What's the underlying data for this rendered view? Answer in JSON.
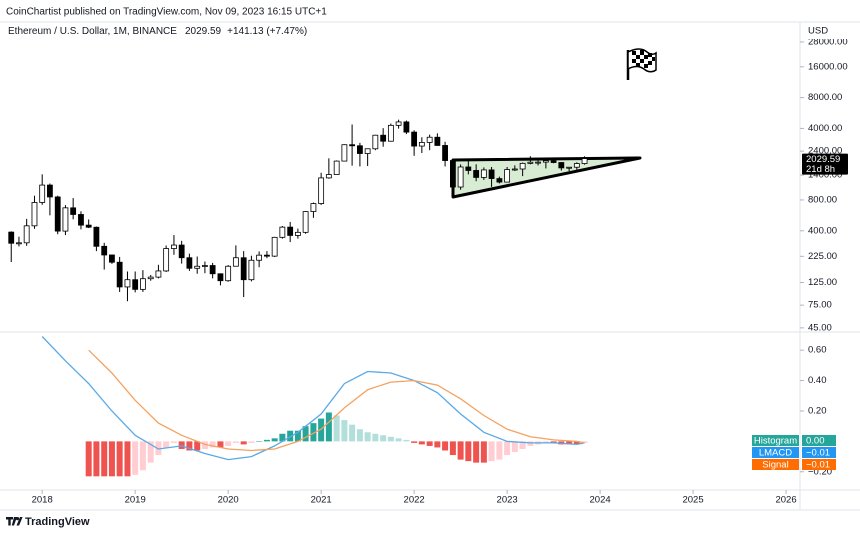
{
  "header": {
    "publisher": "CoinChartist published on TradingView.com, Nov 09, 2023 16:15 UTC+1",
    "symbol": "Ethereum / U.S. Dollar, 1M, BINANCE",
    "change": "+141.13 (+7.47%)",
    "currency": "USD",
    "countdown": "21d 8h"
  },
  "footer": {
    "brand": "TradingView"
  },
  "chart_data": [
    {
      "type": "candlestick",
      "log": true,
      "grid": false,
      "up_color": "#ffffff",
      "down_color": "#000000",
      "outline_color": "#000000",
      "xlim": [
        2017.6,
        2026.15
      ],
      "xticks": [
        2018,
        2019,
        2020,
        2021,
        2022,
        2023,
        2024,
        2025,
        2026
      ],
      "ylim": [
        41,
        32000
      ],
      "yticks": [
        {
          "value": 28000,
          "label": "28000.00"
        },
        {
          "value": 16000,
          "label": "16000.00"
        },
        {
          "value": 8000,
          "label": "8000.00"
        },
        {
          "value": 4000,
          "label": "4000.00"
        },
        {
          "value": 2400,
          "label": "2400.00"
        },
        {
          "value": 1400,
          "label": "1400.00"
        },
        {
          "value": 800,
          "label": "800.00"
        },
        {
          "value": 400,
          "label": "400.00"
        },
        {
          "value": 225,
          "label": "225.00"
        },
        {
          "value": 125,
          "label": "125.00"
        },
        {
          "value": 75,
          "label": "75.00"
        },
        {
          "value": 45,
          "label": "45.00"
        }
      ],
      "x": [
        2017.667,
        2017.75,
        2017.833,
        2017.917,
        2018.0,
        2018.083,
        2018.167,
        2018.25,
        2018.333,
        2018.417,
        2018.5,
        2018.583,
        2018.667,
        2018.75,
        2018.833,
        2018.917,
        2019.0,
        2019.083,
        2019.167,
        2019.25,
        2019.333,
        2019.417,
        2019.5,
        2019.583,
        2019.667,
        2019.75,
        2019.833,
        2019.917,
        2020.0,
        2020.083,
        2020.167,
        2020.25,
        2020.333,
        2020.417,
        2020.5,
        2020.583,
        2020.667,
        2020.75,
        2020.833,
        2020.917,
        2021.0,
        2021.083,
        2021.167,
        2021.25,
        2021.333,
        2021.417,
        2021.5,
        2021.583,
        2021.667,
        2021.75,
        2021.833,
        2021.917,
        2022.0,
        2022.083,
        2022.167,
        2022.25,
        2022.333,
        2022.417,
        2022.5,
        2022.583,
        2022.667,
        2022.75,
        2022.833,
        2022.917,
        2023.0,
        2023.083,
        2023.167,
        2023.25,
        2023.333,
        2023.417,
        2023.5,
        2023.583,
        2023.667,
        2023.75,
        2023.833
      ],
      "open": [
        388,
        302,
        305,
        447,
        756,
        1118,
        856,
        397,
        670,
        577,
        454,
        433,
        282,
        232,
        197,
        113,
        133,
        107,
        136,
        141,
        162,
        268,
        290,
        218,
        172,
        180,
        183,
        152,
        130,
        180,
        218,
        133,
        206,
        231,
        226,
        345,
        434,
        360,
        386,
        616,
        737,
        1314,
        1417,
        1918,
        2773,
        2707,
        2274,
        2530,
        3433,
        3000,
        4287,
        4630,
        3680,
        2690,
        2920,
        3280,
        2726,
        1942,
        1070,
        1680,
        1553,
        1328,
        1572,
        1295,
        1196,
        1585,
        1605,
        1822,
        1870,
        1874,
        1934,
        1857,
        1646,
        1671,
        1815
      ],
      "high": [
        395,
        350,
        523,
        880,
        1424,
        1158,
        880,
        712,
        835,
        620,
        516,
        440,
        305,
        232,
        222,
        160,
        160,
        165,
        148,
        186,
        287,
        363,
        319,
        239,
        224,
        200,
        194,
        153,
        185,
        288,
        253,
        228,
        251,
        253,
        349,
        445,
        488,
        420,
        622,
        755,
        1476,
        2041,
        1947,
        2797,
        4372,
        2890,
        2551,
        3466,
        4027,
        4460,
        4868,
        4778,
        3836,
        3280,
        3480,
        3580,
        2960,
        1975,
        1780,
        2030,
        1785,
        1663,
        1680,
        1352,
        1680,
        1743,
        1857,
        2141,
        2015,
        1935,
        2029,
        1870,
        1676,
        1865,
        2136
      ],
      "low": [
        198,
        281,
        285,
        418,
        717,
        566,
        370,
        363,
        518,
        413,
        425,
        253,
        167,
        190,
        101,
        82,
        100,
        101,
        130,
        137,
        158,
        233,
        191,
        162,
        152,
        154,
        137,
        117,
        127,
        179,
        90,
        128,
        176,
        216,
        222,
        335,
        310,
        335,
        374,
        535,
        715,
        1290,
        1429,
        1936,
        1730,
        1700,
        1718,
        2450,
        2650,
        2970,
        3980,
        3525,
        2159,
        2300,
        2450,
        2710,
        1700,
        880,
        1006,
        1422,
        1220,
        1254,
        1073,
        1160,
        1190,
        1536,
        1368,
        1784,
        1740,
        1626,
        1826,
        1550,
        1531,
        1521,
        1770
      ],
      "close": [
        302,
        305,
        447,
        756,
        1118,
        856,
        397,
        670,
        577,
        454,
        433,
        282,
        232,
        197,
        113,
        133,
        107,
        136,
        141,
        162,
        268,
        290,
        218,
        172,
        180,
        183,
        152,
        130,
        180,
        218,
        133,
        206,
        231,
        226,
        345,
        434,
        360,
        386,
        616,
        737,
        1314,
        1417,
        1918,
        2773,
        2707,
        2274,
        2530,
        3433,
        3000,
        4287,
        4630,
        3680,
        2690,
        2920,
        3280,
        2726,
        1942,
        1070,
        1680,
        1553,
        1328,
        1572,
        1295,
        1196,
        1585,
        1605,
        1822,
        1870,
        1874,
        1934,
        1857,
        1646,
        1671,
        1815,
        2029.59
      ]
    },
    {
      "type": "macd",
      "grid": false,
      "xlim": [
        2017.6,
        2026.15
      ],
      "ylim": [
        -0.32,
        0.7
      ],
      "yticks": [
        {
          "value": 0.6,
          "label": "0.60"
        },
        {
          "value": 0.4,
          "label": "0.40"
        },
        {
          "value": 0.2,
          "label": "0.20"
        },
        {
          "value": -0.2,
          "label": "−0.20"
        }
      ],
      "histogram": {
        "name": "Histogram",
        "color": "#26a69a",
        "colors": {
          "rising_above": "#26a69a",
          "falling_above": "#b2dfdb",
          "falling_below": "#ef5350",
          "rising_below": "#ffcdd2"
        },
        "last": {
          "value": 0,
          "label": "0.00"
        },
        "x": [
          2018.5,
          2018.583,
          2018.667,
          2018.75,
          2018.833,
          2018.917,
          2019.0,
          2019.083,
          2019.167,
          2019.25,
          2019.333,
          2019.417,
          2019.5,
          2019.583,
          2019.667,
          2019.75,
          2019.833,
          2019.917,
          2020.0,
          2020.083,
          2020.167,
          2020.25,
          2020.333,
          2020.417,
          2020.5,
          2020.583,
          2020.667,
          2020.75,
          2020.833,
          2020.917,
          2021.0,
          2021.083,
          2021.167,
          2021.25,
          2021.333,
          2021.417,
          2021.5,
          2021.583,
          2021.667,
          2021.75,
          2021.833,
          2021.917,
          2022.0,
          2022.083,
          2022.167,
          2022.25,
          2022.333,
          2022.417,
          2022.5,
          2022.583,
          2022.667,
          2022.75,
          2022.833,
          2022.917,
          2023.0,
          2023.083,
          2023.167,
          2023.25,
          2023.333,
          2023.417,
          2023.5,
          2023.583,
          2023.667,
          2023.75,
          2023.833
        ],
        "values": [
          -0.23,
          -0.23,
          -0.23,
          -0.23,
          -0.23,
          -0.23,
          -0.22,
          -0.19,
          -0.14,
          -0.09,
          -0.04,
          -0.01,
          -0.05,
          -0.06,
          -0.06,
          -0.05,
          -0.04,
          -0.04,
          -0.03,
          -0.01,
          -0.02,
          -0.01,
          0,
          0.01,
          0.02,
          0.05,
          0.07,
          0.07,
          0.1,
          0.12,
          0.15,
          0.19,
          0.17,
          0.14,
          0.11,
          0.08,
          0.06,
          0.05,
          0.04,
          0.03,
          0.02,
          0.01,
          -0.01,
          -0.02,
          -0.03,
          -0.04,
          -0.06,
          -0.09,
          -0.12,
          -0.13,
          -0.14,
          -0.14,
          -0.13,
          -0.12,
          -0.09,
          -0.07,
          -0.05,
          -0.03,
          -0.02,
          -0.01,
          -0.01,
          -0.02,
          -0.02,
          -0.02,
          -0.01
        ]
      },
      "series": [
        {
          "name": "LMACD",
          "color": "#5aa9e6",
          "label_color": "#2196f3",
          "last": {
            "value": -0.01,
            "label": "−0.01"
          },
          "x": [
            2018.0,
            2018.25,
            2018.5,
            2018.75,
            2019.0,
            2019.25,
            2019.5,
            2019.75,
            2020.0,
            2020.25,
            2020.5,
            2020.75,
            2021.0,
            2021.25,
            2021.5,
            2021.75,
            2022.0,
            2022.25,
            2022.5,
            2022.75,
            2023.0,
            2023.25,
            2023.5,
            2023.75,
            2023.833
          ],
          "values": [
            0.69,
            0.53,
            0.38,
            0.2,
            0.04,
            -0.05,
            -0.03,
            -0.08,
            -0.12,
            -0.1,
            -0.03,
            0.06,
            0.18,
            0.38,
            0.46,
            0.45,
            0.4,
            0.32,
            0.18,
            0.06,
            0,
            -0.01,
            -0.01,
            -0.02,
            -0.01
          ]
        },
        {
          "name": "Signal",
          "color": "#f4a261",
          "label_color": "#ff6d00",
          "last": {
            "value": -0.01,
            "label": "−0.01"
          },
          "x": [
            2018.5,
            2018.75,
            2019.0,
            2019.25,
            2019.5,
            2019.75,
            2020.0,
            2020.25,
            2020.5,
            2020.75,
            2021.0,
            2021.25,
            2021.5,
            2021.75,
            2022.0,
            2022.25,
            2022.5,
            2022.75,
            2023.0,
            2023.25,
            2023.5,
            2023.75,
            2023.833
          ],
          "values": [
            0.6,
            0.45,
            0.27,
            0.12,
            0.04,
            -0.02,
            -0.05,
            -0.06,
            -0.05,
            0,
            0.08,
            0.22,
            0.34,
            0.39,
            0.4,
            0.37,
            0.28,
            0.17,
            0.08,
            0.03,
            0.01,
            0,
            -0.01
          ]
        }
      ]
    }
  ]
}
